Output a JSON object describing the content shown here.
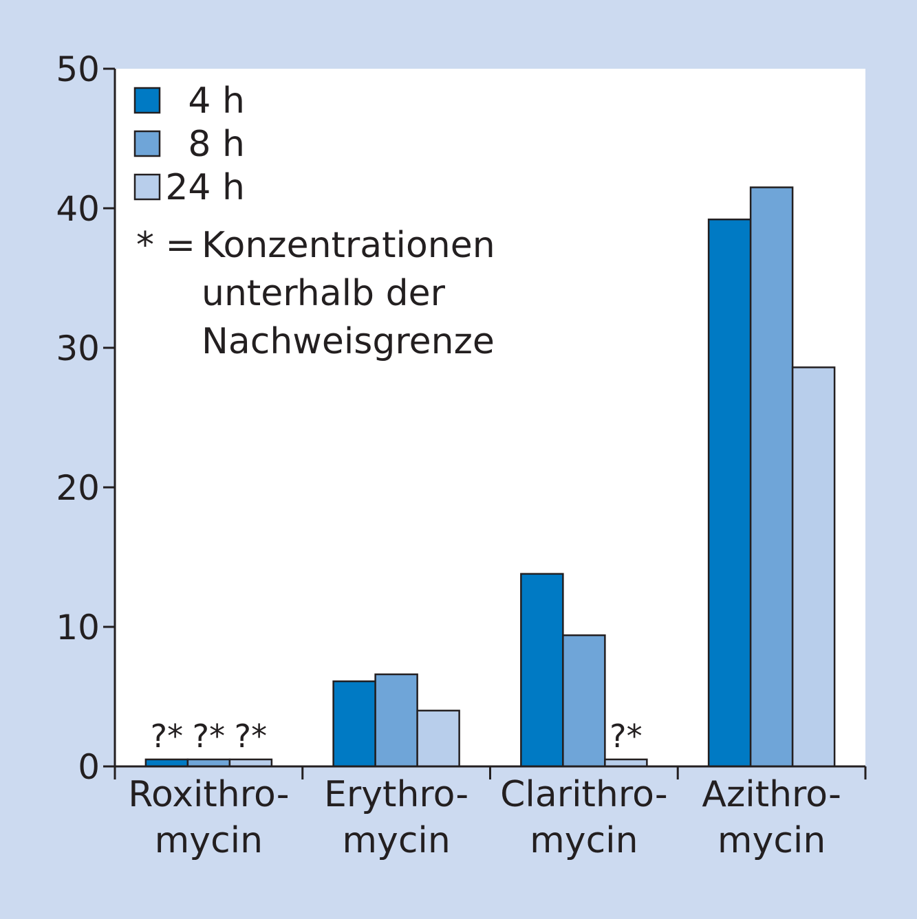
{
  "chart_data": {
    "type": "bar",
    "categories": [
      [
        "Roxithro-",
        "mycin"
      ],
      [
        "Erythro-",
        "mycin"
      ],
      [
        "Clarithro-",
        "mycin"
      ],
      [
        "Azithro-",
        "mycin"
      ]
    ],
    "series": [
      {
        "name": "4 h",
        "color": "#007ac4",
        "values": [
          0.5,
          6.1,
          13.8,
          39.2
        ],
        "markers": [
          "?*",
          "",
          "",
          ""
        ]
      },
      {
        "name": "8 h",
        "color": "#6fa5d8",
        "values": [
          0.5,
          6.6,
          9.4,
          41.5
        ],
        "markers": [
          "?*",
          "",
          "",
          ""
        ]
      },
      {
        "name": "24 h",
        "color": "#b8ceeb",
        "values": [
          0.5,
          4.0,
          0.5,
          28.6
        ],
        "markers": [
          "?*",
          "",
          "?*",
          ""
        ]
      }
    ],
    "ylim": [
      0,
      50
    ],
    "yticks": [
      0,
      10,
      20,
      30,
      40,
      50
    ],
    "xlabel": "",
    "ylabel": "",
    "legend_position": "top-left",
    "note": {
      "symbol": "* =",
      "lines": [
        "Konzentrationen",
        "unterhalb der",
        "Nachweisgrenze"
      ]
    },
    "colors": {
      "background": "#ccdaf0",
      "plot_area": "#ffffff",
      "axis": "#231f20"
    }
  }
}
